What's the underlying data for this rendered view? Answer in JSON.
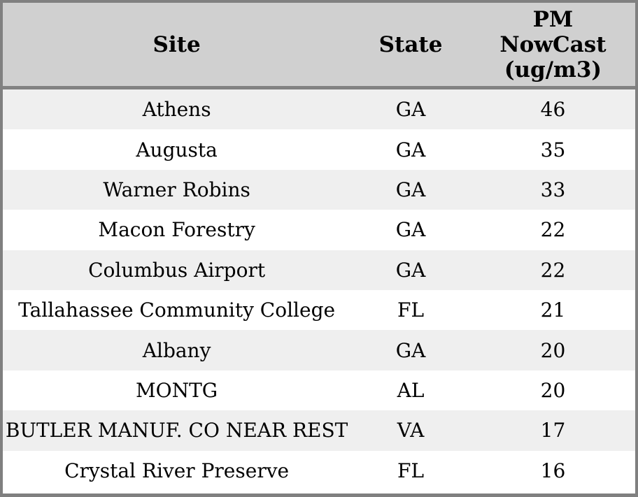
{
  "colors": {
    "border": "#808080",
    "divider": "#828282",
    "header_bg": "#d0d0d0",
    "row_alt_bg": "#efefef",
    "row_bg": "#ffffff",
    "text": "#000000"
  },
  "chart_data": {
    "type": "table",
    "columns": [
      "Site",
      "State",
      "PM NowCast (ug/m3)"
    ],
    "header": {
      "site": "Site",
      "state": "State",
      "pm_line1": "PM",
      "pm_line2": "NowCast",
      "pm_line3": "(ug/m3)"
    },
    "rows": [
      {
        "site": "Athens",
        "state": "GA",
        "pm": 46
      },
      {
        "site": "Augusta",
        "state": "GA",
        "pm": 35
      },
      {
        "site": "Warner Robins",
        "state": "GA",
        "pm": 33
      },
      {
        "site": "Macon Forestry",
        "state": "GA",
        "pm": 22
      },
      {
        "site": "Columbus Airport",
        "state": "GA",
        "pm": 22
      },
      {
        "site": "Tallahassee Community College",
        "state": "FL",
        "pm": 21
      },
      {
        "site": "Albany",
        "state": "GA",
        "pm": 20
      },
      {
        "site": "MONTG",
        "state": "AL",
        "pm": 20
      },
      {
        "site": "BUTLER MANUF. CO NEAR REST",
        "state": "VA",
        "pm": 17
      },
      {
        "site": "Crystal River Preserve",
        "state": "FL",
        "pm": 16
      }
    ],
    "layout": {
      "grid": "off",
      "row_striping": "odd-rows-shaded",
      "alignment": "center"
    }
  }
}
